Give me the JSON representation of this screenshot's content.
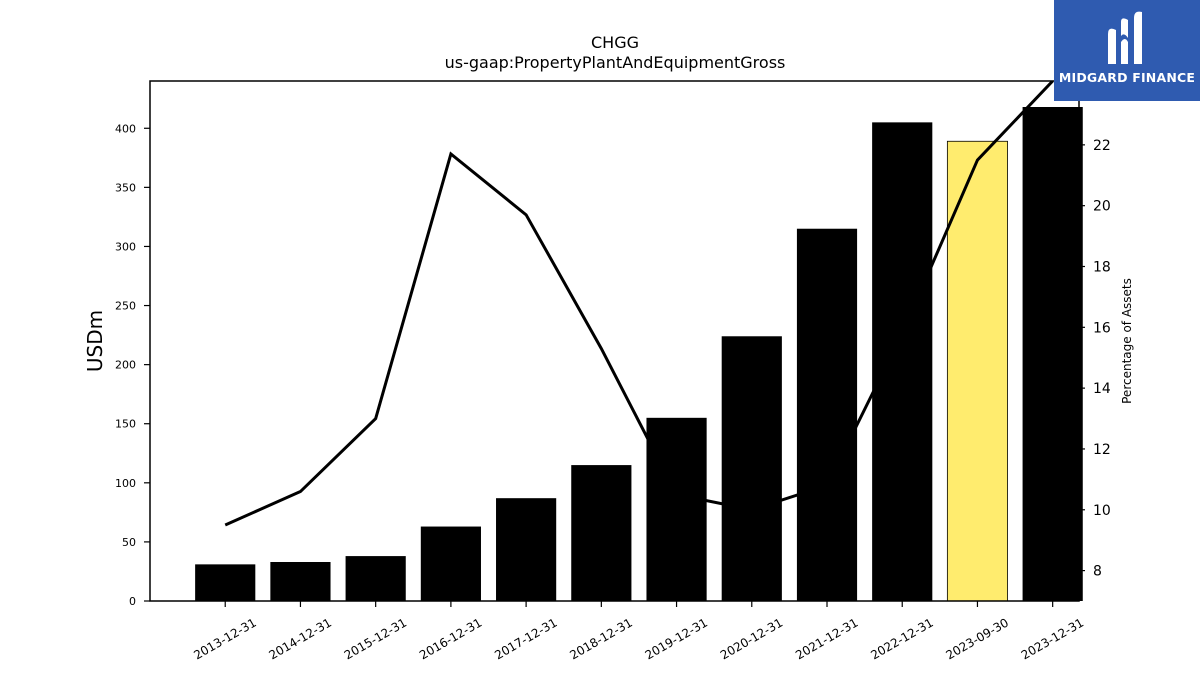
{
  "chart_data": {
    "type": "bar",
    "title": "CHGG",
    "subtitle": "us-gaap:PropertyPlantAndEquipmentGross",
    "ylabel": "USDm",
    "y2label": "Percentage of Assets",
    "categories": [
      "2013-12-31",
      "2014-12-31",
      "2015-12-31",
      "2016-12-31",
      "2017-12-31",
      "2018-12-31",
      "2019-12-31",
      "2020-12-31",
      "2021-12-31",
      "2022-12-31",
      "2023-09-30",
      "2023-12-31"
    ],
    "series": [
      {
        "kind": "bar",
        "axis": "left",
        "values": [
          31,
          33,
          38,
          63,
          87,
          115,
          155,
          224,
          315,
          405,
          389,
          418
        ]
      },
      {
        "kind": "line",
        "axis": "right",
        "values": [
          9.5,
          10.6,
          13.0,
          21.7,
          19.7,
          15.3,
          10.5,
          10.0,
          10.8,
          15.8,
          21.5,
          24.1
        ]
      }
    ],
    "highlight_index": 10,
    "bar_color": "#000000",
    "highlight_color": "#ffec6e",
    "line_color": "#000000",
    "ylim": [
      0,
      440
    ],
    "yticks": [
      0,
      50,
      100,
      150,
      200,
      250,
      300,
      350,
      400
    ],
    "y2lim": [
      7,
      24.1
    ],
    "y2ticks": [
      8,
      10,
      12,
      14,
      16,
      18,
      20,
      22
    ],
    "grid": false
  },
  "logo": {
    "text": "MIDGARD FINANCE",
    "color": "#2f5bb0"
  }
}
